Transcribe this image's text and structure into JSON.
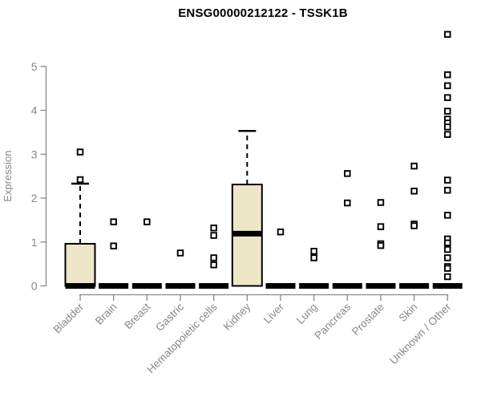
{
  "chart_data": {
    "type": "boxplot",
    "title": "ENSG00000212122 - TSSK1B",
    "ylabel": "Expression",
    "xlabel": "",
    "ylim": [
      0,
      5.8
    ],
    "yticks": [
      0,
      1,
      2,
      3,
      4,
      5
    ],
    "grid": false,
    "legend": "none",
    "categories": [
      "Bladder",
      "Brain",
      "Breast",
      "Gastric",
      "Hematopoietic cells",
      "Kidney",
      "Liver",
      "Lung",
      "Pancreas",
      "Prostate",
      "Skin",
      "Unknown / Other"
    ],
    "series": [
      {
        "category": "Bladder",
        "q1": 0,
        "median": 0,
        "q3": 0.96,
        "whisker_low": 0,
        "whisker_high": 2.33,
        "outliers": [
          3.05,
          2.42
        ]
      },
      {
        "category": "Brain",
        "q1": 0,
        "median": 0,
        "q3": 0,
        "whisker_low": 0,
        "whisker_high": 0,
        "outliers": [
          1.46,
          0.91
        ]
      },
      {
        "category": "Breast",
        "q1": 0,
        "median": 0,
        "q3": 0,
        "whisker_low": 0,
        "whisker_high": 0,
        "outliers": [
          1.46
        ]
      },
      {
        "category": "Gastric",
        "q1": 0,
        "median": 0,
        "q3": 0,
        "whisker_low": 0,
        "whisker_high": 0,
        "outliers": [
          0.75
        ]
      },
      {
        "category": "Hematopoietic cells",
        "q1": 0,
        "median": 0,
        "q3": 0,
        "whisker_low": 0,
        "whisker_high": 0,
        "outliers": [
          1.32,
          1.15,
          0.64,
          0.48
        ]
      },
      {
        "category": "Kidney",
        "q1": 0,
        "median": 1.19,
        "q3": 2.31,
        "whisker_low": 0,
        "whisker_high": 3.53,
        "outliers": []
      },
      {
        "category": "Liver",
        "q1": 0,
        "median": 0,
        "q3": 0,
        "whisker_low": 0,
        "whisker_high": 0,
        "outliers": [
          1.23
        ]
      },
      {
        "category": "Lung",
        "q1": 0,
        "median": 0,
        "q3": 0,
        "whisker_low": 0,
        "whisker_high": 0,
        "outliers": [
          0.79,
          0.64
        ]
      },
      {
        "category": "Pancreas",
        "q1": 0,
        "median": 0,
        "q3": 0,
        "whisker_low": 0,
        "whisker_high": 0,
        "outliers": [
          2.56,
          1.89
        ]
      },
      {
        "category": "Prostate",
        "q1": 0,
        "median": 0,
        "q3": 0,
        "whisker_low": 0,
        "whisker_high": 0,
        "outliers": [
          1.9,
          1.35,
          0.96,
          0.92
        ]
      },
      {
        "category": "Skin",
        "q1": 0,
        "median": 0,
        "q3": 0,
        "whisker_low": 0,
        "whisker_high": 0,
        "outliers": [
          2.73,
          2.16,
          1.41,
          1.37
        ]
      },
      {
        "category": "Unknown / Other",
        "q1": 0,
        "median": 0,
        "q3": 0,
        "whisker_low": 0,
        "whisker_high": 0,
        "outliers": [
          5.73,
          4.81,
          4.56,
          4.29,
          3.98,
          3.8,
          3.71,
          3.62,
          3.45,
          2.41,
          2.18,
          1.61,
          1.07,
          0.98,
          0.86,
          0.83,
          0.64,
          0.44,
          0.4,
          0.21
        ]
      }
    ],
    "colors": {
      "box_fill": "#EDE6C8",
      "box_stroke": "#000000",
      "median": "#000000",
      "whisker": "#000000",
      "outlier_stroke": "#000000",
      "outlier_fill": "#FFFFFF",
      "axis": "#888888",
      "tick_text": "#888888",
      "title_text": "#000000",
      "background": "#FFFFFF"
    }
  }
}
